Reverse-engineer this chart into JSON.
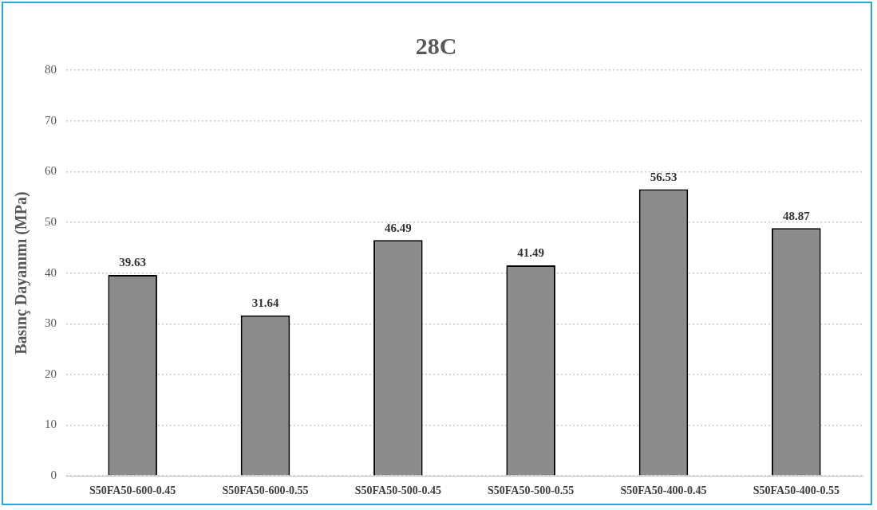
{
  "chart_data": {
    "type": "bar",
    "title": "28C",
    "ylabel": "Basınç Dayanımı (MPa)",
    "categories": [
      "S50FA50-600-0.45",
      "S50FA50-600-0.55",
      "S50FA50-500-0.45",
      "S50FA50-500-0.55",
      "S50FA50-400-0.45",
      "S50FA50-400-0.55"
    ],
    "values": [
      39.63,
      31.64,
      46.49,
      41.49,
      56.53,
      48.87
    ],
    "color": "#8c8c8c",
    "ylim": [
      0,
      80
    ],
    "yticks": [
      0,
      10,
      20,
      30,
      40,
      50,
      60,
      70,
      80
    ],
    "grid": "y",
    "data_labels": true
  }
}
